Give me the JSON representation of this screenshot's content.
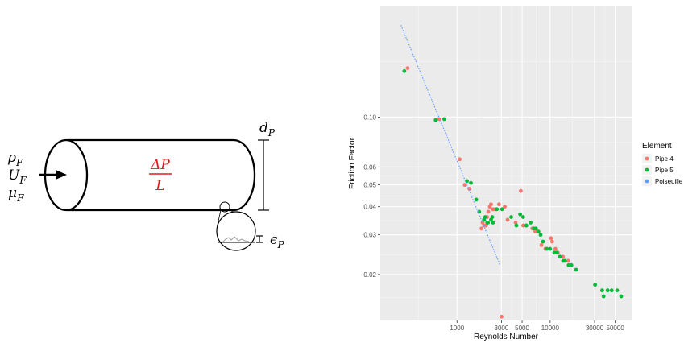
{
  "diagram": {
    "inlet_labels": [
      {
        "symbol": "ρ",
        "subscript": "F"
      },
      {
        "symbol": "U",
        "subscript": "F"
      },
      {
        "symbol": "μ",
        "subscript": "F"
      }
    ],
    "pressure_drop": {
      "numerator": "ΔP",
      "denominator": "L"
    },
    "diameter": {
      "symbol": "d",
      "subscript": "P"
    },
    "roughness": {
      "symbol": "ϵ",
      "subscript": "P"
    },
    "colors": {
      "outline": "#000000",
      "pressure_text": "#e41a1c",
      "roughness_line": "#9e9e9e"
    }
  },
  "chart_data": {
    "type": "scatter",
    "xlabel": "Reynolds Number",
    "ylabel": "Friction Factor",
    "x_scale": "log",
    "y_scale": "log",
    "xlim": [
      150,
      75000
    ],
    "ylim": [
      0.0125,
      0.31
    ],
    "x_ticks": [
      1000,
      3000,
      5000,
      10000,
      30000,
      50000
    ],
    "x_tick_labels": [
      "1000",
      "3000",
      "5000",
      "10000",
      "30000",
      "50000"
    ],
    "y_ticks": [
      0.02,
      0.03,
      0.04,
      0.05,
      0.06,
      0.1
    ],
    "y_tick_labels": [
      "0.02",
      "0.03",
      "0.04",
      "0.05",
      "0.06",
      "0.10"
    ],
    "grid": true,
    "panel_background": "#ebebeb",
    "legend": {
      "title": "Element",
      "position": "right"
    },
    "series": [
      {
        "name": "Pipe 4",
        "color": "#f8766d",
        "points": [
          [
            295,
            0.165
          ],
          [
            640,
            0.098
          ],
          [
            1070,
            0.065
          ],
          [
            1210,
            0.05
          ],
          [
            1360,
            0.048
          ],
          [
            1830,
            0.032
          ],
          [
            1880,
            0.034
          ],
          [
            1960,
            0.033
          ],
          [
            2050,
            0.033
          ],
          [
            2110,
            0.036
          ],
          [
            2170,
            0.038
          ],
          [
            2250,
            0.04
          ],
          [
            2320,
            0.041
          ],
          [
            2410,
            0.039
          ],
          [
            2480,
            0.039
          ],
          [
            2600,
            0.039
          ],
          [
            2820,
            0.041
          ],
          [
            3010,
            0.013
          ],
          [
            3260,
            0.04
          ],
          [
            3490,
            0.035
          ],
          [
            4260,
            0.034
          ],
          [
            4840,
            0.047
          ],
          [
            5140,
            0.033
          ],
          [
            5540,
            0.033
          ],
          [
            6440,
            0.032
          ],
          [
            6920,
            0.031
          ],
          [
            7360,
            0.031
          ],
          [
            8060,
            0.027
          ],
          [
            8880,
            0.026
          ],
          [
            10200,
            0.029
          ],
          [
            10500,
            0.028
          ],
          [
            11400,
            0.026
          ],
          [
            12100,
            0.025
          ],
          [
            13700,
            0.024
          ],
          [
            15600,
            0.023
          ]
        ]
      },
      {
        "name": "Pipe 5",
        "color": "#00ba38",
        "points": [
          [
            272,
            0.16
          ],
          [
            590,
            0.097
          ],
          [
            730,
            0.098
          ],
          [
            1280,
            0.052
          ],
          [
            1410,
            0.051
          ],
          [
            1610,
            0.043
          ],
          [
            1730,
            0.038
          ],
          [
            1950,
            0.035
          ],
          [
            2010,
            0.036
          ],
          [
            2110,
            0.034
          ],
          [
            2150,
            0.034
          ],
          [
            2320,
            0.035
          ],
          [
            2390,
            0.036
          ],
          [
            2430,
            0.034
          ],
          [
            2680,
            0.039
          ],
          [
            3050,
            0.039
          ],
          [
            3820,
            0.036
          ],
          [
            4340,
            0.033
          ],
          [
            4770,
            0.037
          ],
          [
            5130,
            0.036
          ],
          [
            5550,
            0.033
          ],
          [
            6170,
            0.034
          ],
          [
            6680,
            0.032
          ],
          [
            7040,
            0.032
          ],
          [
            7490,
            0.031
          ],
          [
            7900,
            0.03
          ],
          [
            8380,
            0.028
          ],
          [
            9240,
            0.026
          ],
          [
            9980,
            0.026
          ],
          [
            11100,
            0.025
          ],
          [
            11800,
            0.025
          ],
          [
            12700,
            0.024
          ],
          [
            13800,
            0.023
          ],
          [
            14400,
            0.023
          ],
          [
            15800,
            0.022
          ],
          [
            16900,
            0.022
          ],
          [
            19000,
            0.021
          ],
          [
            30400,
            0.018
          ],
          [
            36200,
            0.017
          ],
          [
            37500,
            0.016
          ],
          [
            41400,
            0.017
          ],
          [
            45800,
            0.017
          ],
          [
            52400,
            0.017
          ],
          [
            57900,
            0.016
          ]
        ]
      },
      {
        "name": "Poiseuille",
        "color": "#619cff",
        "line": [
          [
            250,
            0.256
          ],
          [
            2900,
            0.022
          ]
        ]
      }
    ]
  }
}
